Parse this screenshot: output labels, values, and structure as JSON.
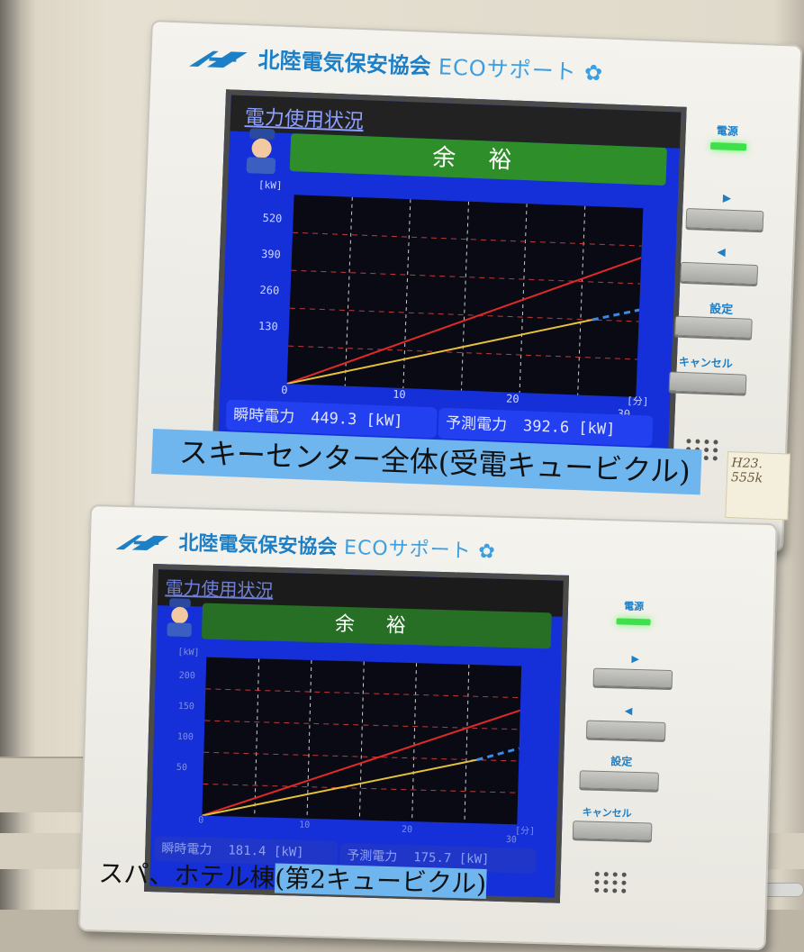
{
  "brand": {
    "name": "北陸電気保安協会",
    "service": "ECOサポート"
  },
  "colors": {
    "brand_blue": "#1d7fc6",
    "screen_blue": "#1530d8",
    "status_green": "#2e8f2a",
    "actual_line": "#e6c23a",
    "target_line": "#e02a2a",
    "forecast_line": "#3a8be8",
    "grid": "#c23a3a"
  },
  "panel_top": {
    "screen_title": "電力使用状況",
    "status": "余 裕",
    "y_unit": "[kW]",
    "x_unit": "[分]",
    "y_ticks": [
      "520",
      "390",
      "260",
      "130"
    ],
    "x_ticks": [
      "0",
      "10",
      "20",
      "30"
    ],
    "instant_label": "瞬時電力",
    "instant_value": "449.3 [kW]",
    "forecast_label": "予測電力",
    "forecast_value": "392.6 [kW]",
    "led_label": "電源",
    "btn_right_icon": "▶",
    "btn_left_icon": "◀",
    "settings_label": "設定",
    "cancel_label": "キャンセル",
    "sticker_line1": "H23.",
    "sticker_line2": "555k",
    "caption": "スキーセンター全体(受電キュービクル)"
  },
  "panel_bottom": {
    "screen_title": "電力使用状況",
    "status": "余 裕",
    "y_unit": "[kW]",
    "x_unit": "[分]",
    "y_ticks": [
      "200",
      "150",
      "100",
      "50"
    ],
    "x_ticks": [
      "0",
      "10",
      "20",
      "30"
    ],
    "instant_label": "瞬時電力",
    "instant_value": "181.4 [kW]",
    "forecast_label": "予測電力",
    "forecast_value": "175.7 [kW]",
    "led_label": "電源",
    "btn_right_icon": "▶",
    "btn_left_icon": "◀",
    "settings_label": "設定",
    "cancel_label": "キャンセル",
    "caption_plain": "スパ、ホテル棟",
    "caption_highlight": "(第2キュービクル)"
  },
  "chart_data": [
    {
      "type": "line",
      "ylabel": "[kW]",
      "xlabel": "[分]",
      "xlim": [
        0,
        30
      ],
      "ylim": [
        0,
        650
      ],
      "series": [
        {
          "role": "target",
          "x": [
            0,
            30
          ],
          "values": [
            0,
            480
          ]
        },
        {
          "role": "actual",
          "x": [
            0,
            26
          ],
          "values": [
            0,
            260
          ]
        },
        {
          "role": "forecast",
          "x": [
            26,
            30
          ],
          "values": [
            260,
            300
          ]
        }
      ]
    },
    {
      "type": "line",
      "ylabel": "[kW]",
      "xlabel": "[分]",
      "xlim": [
        0,
        30
      ],
      "ylim": [
        0,
        250
      ],
      "series": [
        {
          "role": "target",
          "x": [
            0,
            30
          ],
          "values": [
            0,
            180
          ]
        },
        {
          "role": "actual",
          "x": [
            0,
            26
          ],
          "values": [
            0,
            100
          ]
        },
        {
          "role": "forecast",
          "x": [
            26,
            30
          ],
          "values": [
            100,
            120
          ]
        }
      ]
    }
  ]
}
